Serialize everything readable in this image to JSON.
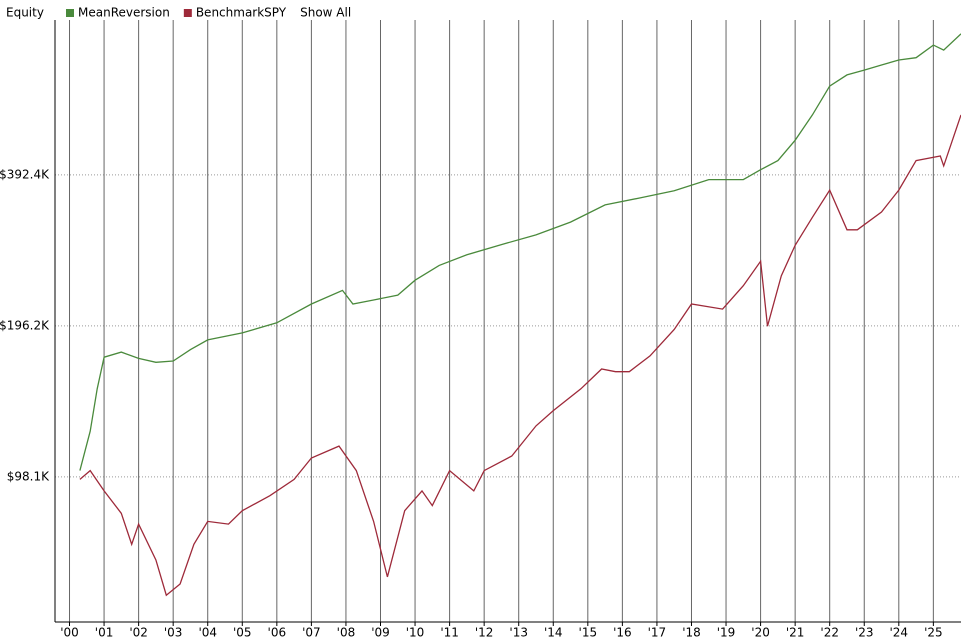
{
  "chart_data": {
    "type": "line",
    "title": "Equity",
    "legend_action": "Show All",
    "log_scale": true,
    "grid": true,
    "legend_position": "top-left",
    "xlim": [
      1999.58,
      2025.8
    ],
    "xticks": [
      {
        "value": 2000,
        "label": "'00"
      },
      {
        "value": 2001,
        "label": "'01"
      },
      {
        "value": 2002,
        "label": "'02"
      },
      {
        "value": 2003,
        "label": "'03"
      },
      {
        "value": 2004,
        "label": "'04"
      },
      {
        "value": 2005,
        "label": "'05"
      },
      {
        "value": 2006,
        "label": "'06"
      },
      {
        "value": 2007,
        "label": "'07"
      },
      {
        "value": 2008,
        "label": "'08"
      },
      {
        "value": 2009,
        "label": "'09"
      },
      {
        "value": 2010,
        "label": "'10"
      },
      {
        "value": 2011,
        "label": "'11"
      },
      {
        "value": 2012,
        "label": "'12"
      },
      {
        "value": 2013,
        "label": "'13"
      },
      {
        "value": 2014,
        "label": "'14"
      },
      {
        "value": 2015,
        "label": "'15"
      },
      {
        "value": 2016,
        "label": "'16"
      },
      {
        "value": 2017,
        "label": "'17"
      },
      {
        "value": 2018,
        "label": "'18"
      },
      {
        "value": 2019,
        "label": "'19"
      },
      {
        "value": 2020,
        "label": "'20"
      },
      {
        "value": 2021,
        "label": "'21"
      },
      {
        "value": 2022,
        "label": "'22"
      },
      {
        "value": 2023,
        "label": "'23"
      },
      {
        "value": 2024,
        "label": "'24"
      },
      {
        "value": 2025,
        "label": "'25"
      }
    ],
    "ylim": [
      50400,
      781000
    ],
    "yticks": [
      {
        "value": 98100,
        "label": "$98.1K"
      },
      {
        "value": 196200,
        "label": "$196.2K"
      },
      {
        "value": 392400,
        "label": "$392.4K"
      }
    ],
    "series": [
      {
        "name": "MeanReversion",
        "color": "#4a8a3c",
        "x": [
          2000.3,
          2000.6,
          2000.8,
          2001.0,
          2001.5,
          2002.0,
          2002.5,
          2003.0,
          2003.5,
          2004.0,
          2005.0,
          2006.0,
          2007.0,
          2007.9,
          2008.2,
          2008.8,
          2009.5,
          2010.0,
          2010.7,
          2011.5,
          2012.5,
          2013.5,
          2014.5,
          2015.5,
          2016.5,
          2017.5,
          2018.5,
          2019.5,
          2020.0,
          2020.5,
          2021.0,
          2021.5,
          2022.0,
          2022.5,
          2023.0,
          2023.5,
          2024.0,
          2024.5,
          2025.0,
          2025.3,
          2025.8
        ],
        "values": [
          101000,
          121000,
          147000,
          170000,
          174000,
          169000,
          166000,
          167000,
          176000,
          184000,
          190000,
          199000,
          217000,
          231000,
          217000,
          221000,
          226000,
          242000,
          259000,
          272000,
          285000,
          298000,
          316000,
          342000,
          353000,
          365000,
          384000,
          384000,
          402000,
          419000,
          460000,
          517000,
          590000,
          621000,
          635000,
          650000,
          665000,
          672000,
          712000,
          696000,
          750000
        ]
      },
      {
        "name": "BenchmarkSPY",
        "color": "#9e2a3a",
        "x": [
          2000.3,
          2000.6,
          2001.0,
          2001.5,
          2001.8,
          2002.0,
          2002.5,
          2002.8,
          2003.2,
          2003.6,
          2004.0,
          2004.6,
          2005.0,
          2005.8,
          2006.5,
          2007.0,
          2007.8,
          2008.3,
          2008.8,
          2009.2,
          2009.7,
          2010.2,
          2010.5,
          2011.0,
          2011.7,
          2012.0,
          2012.8,
          2013.5,
          2014.0,
          2014.8,
          2015.4,
          2015.8,
          2016.2,
          2016.8,
          2017.5,
          2018.0,
          2018.9,
          2019.5,
          2020.0,
          2020.2,
          2020.6,
          2021.0,
          2021.5,
          2022.0,
          2022.5,
          2022.8,
          2023.5,
          2024.0,
          2024.5,
          2025.2,
          2025.3,
          2025.8
        ],
        "values": [
          97000,
          101000,
          92000,
          83000,
          72000,
          79000,
          67000,
          57000,
          60000,
          72000,
          80000,
          79000,
          84000,
          90000,
          97000,
          107000,
          113000,
          101000,
          80000,
          62000,
          84000,
          92000,
          86000,
          101000,
          92000,
          101000,
          108000,
          124000,
          133000,
          147000,
          161000,
          159000,
          159000,
          171000,
          193000,
          217000,
          212000,
          236000,
          264000,
          196000,
          247000,
          284000,
          323000,
          366000,
          305000,
          305000,
          331000,
          366000,
          419000,
          428000,
          409000,
          517000
        ]
      }
    ]
  }
}
